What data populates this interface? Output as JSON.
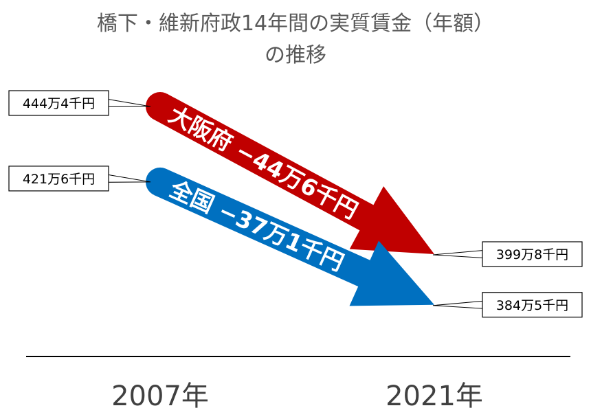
{
  "title": [
    "橋下・維新府政14年間の実質賃金（年額）",
    "の推移"
  ],
  "chart_data": {
    "type": "line",
    "title": "橋下・維新府政14年間の実質賃金（年額）の推移",
    "categories": [
      "2007年",
      "2021年"
    ],
    "series": [
      {
        "name": "大阪府",
        "values": [
          444.4,
          399.8
        ],
        "value_labels": [
          "444万4千円",
          "399万8千円"
        ],
        "change_label": "大阪府 −44万6千円",
        "color": "#c00000"
      },
      {
        "name": "全国",
        "values": [
          421.6,
          384.5
        ],
        "value_labels": [
          "421万6千円",
          "384万5千円"
        ],
        "change_label": "全国 −37万1千円",
        "color": "#0070c0"
      }
    ],
    "units": "万円",
    "legend": "none",
    "grid": false
  }
}
